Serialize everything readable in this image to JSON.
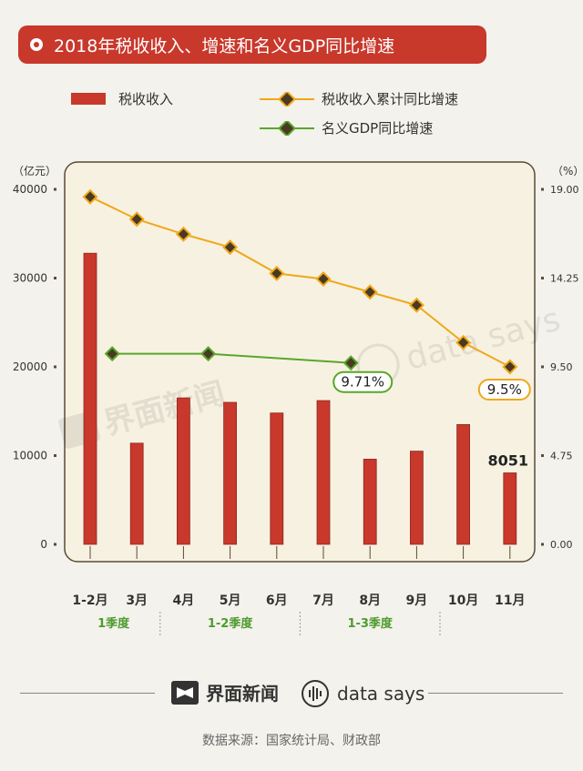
{
  "title": "2018年税收收入、增速和名义GDP同比增速",
  "legend": {
    "bar": "税收收入",
    "tax_growth": "税收收入累计同比增速",
    "gdp_growth": "名义GDP同比增速"
  },
  "left_unit": "（亿元）",
  "right_unit": "（%）",
  "watermark": {
    "jiemian": "界面新闻",
    "datasays": "data says"
  },
  "quarters": [
    "1季度",
    "1-2季度",
    "1-3季度"
  ],
  "footer": {
    "brand_left": "界面新闻",
    "brand_right": "data says",
    "source": "数据来源：国家统计局、财政部"
  },
  "colors": {
    "title_bg": "#c8382b",
    "bar": "#c8382b",
    "tax_line": "#f0a818",
    "gdp_line": "#5aa62a",
    "marker": "#4a3a25",
    "plot_bg": "#f7f1e2",
    "quarter_text": "#4f9a2e"
  },
  "chart_data": {
    "type": "bar",
    "categories": [
      "1-2月",
      "3月",
      "4月",
      "5月",
      "6月",
      "7月",
      "8月",
      "9月",
      "10月",
      "11月"
    ],
    "series": [
      {
        "name": "税收收入",
        "type": "bar",
        "axis": "left",
        "values": [
          32800,
          11400,
          16500,
          16000,
          14800,
          16200,
          9600,
          10500,
          13500,
          8051
        ]
      },
      {
        "name": "税收收入累计同比增速",
        "type": "line",
        "axis": "right",
        "values": [
          18.6,
          17.4,
          16.6,
          15.9,
          14.5,
          14.2,
          13.5,
          12.8,
          10.8,
          9.5
        ]
      },
      {
        "name": "名义GDP同比增速",
        "type": "line",
        "axis": "right",
        "x": [
          "3月",
          "5月",
          "8月"
        ],
        "values": [
          10.2,
          10.2,
          9.71
        ]
      }
    ],
    "left_axis": {
      "ticks": [
        "0",
        "10000",
        "20000",
        "30000",
        "40000"
      ],
      "range": [
        0,
        40000
      ]
    },
    "right_axis": {
      "ticks": [
        "0.00",
        "4.75",
        "9.50",
        "14.25",
        "19.00"
      ],
      "range": [
        0,
        19
      ]
    },
    "annotations": {
      "bar_last": "8051",
      "tax_last": "9.5%",
      "gdp_last": "9.71%"
    }
  }
}
